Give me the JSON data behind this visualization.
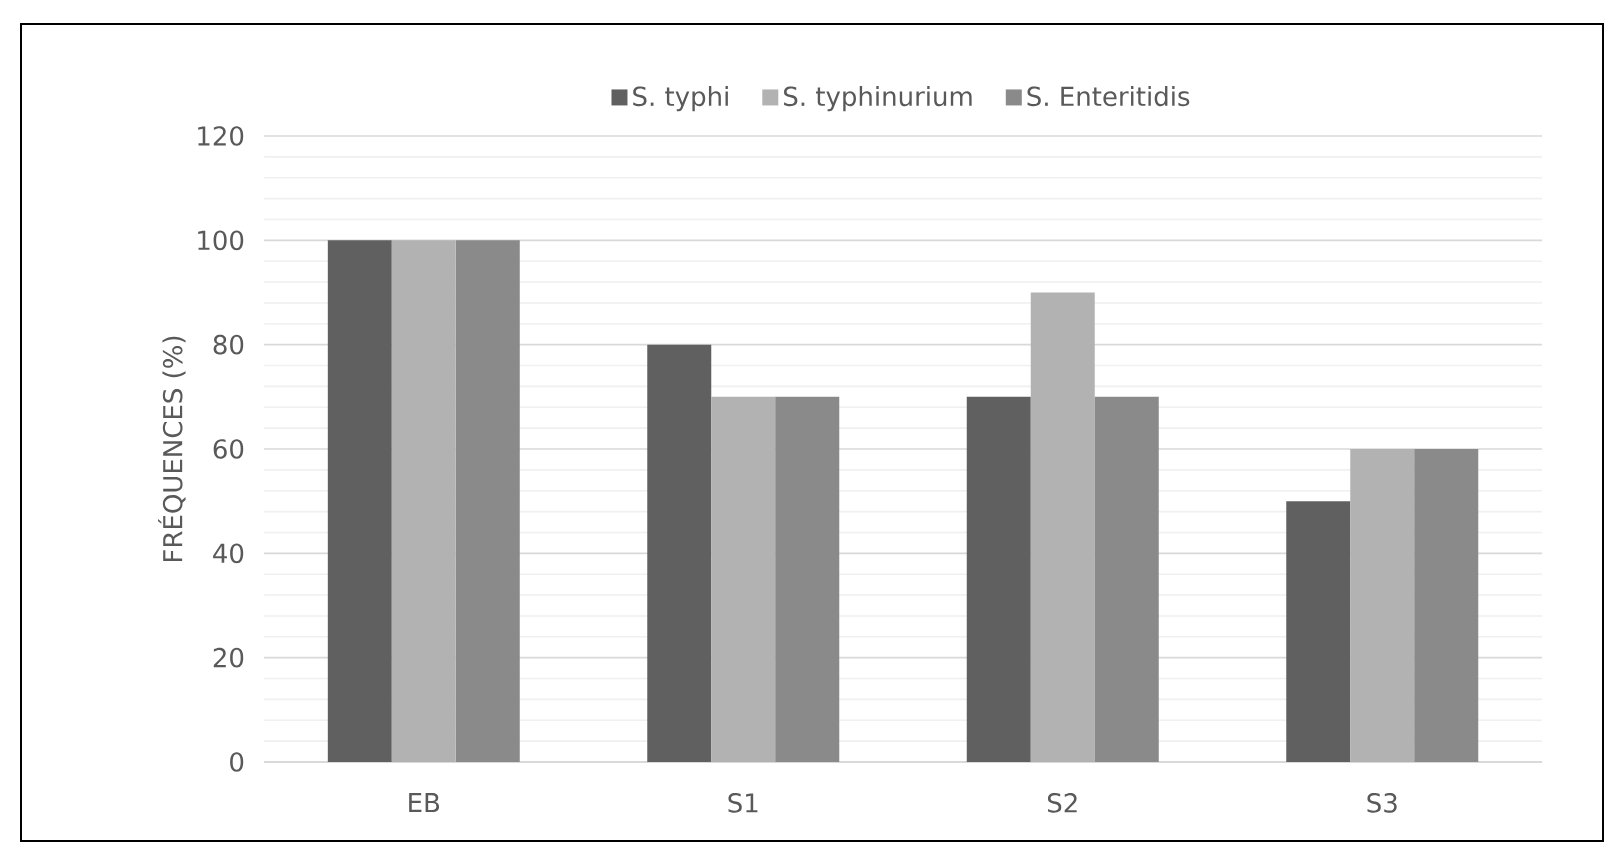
{
  "chart_data": {
    "type": "bar",
    "ylabel": "FRÉQUENCES (%)",
    "categories": [
      "EB",
      "S1",
      "S2",
      "S3"
    ],
    "series": [
      {
        "name": "S. typhi",
        "color": "#606060",
        "values": [
          100,
          80,
          70,
          50
        ]
      },
      {
        "name": "S. typhinurium",
        "color": "#b2b2b2",
        "values": [
          100,
          70,
          90,
          60
        ]
      },
      {
        "name": "S. Enteritidis",
        "color": "#8a8a8a",
        "values": [
          100,
          70,
          70,
          60
        ]
      }
    ],
    "ylim": [
      0,
      120
    ],
    "yticks": [
      0,
      20,
      40,
      60,
      80,
      100,
      120
    ],
    "grid": "y",
    "legend": "top"
  }
}
